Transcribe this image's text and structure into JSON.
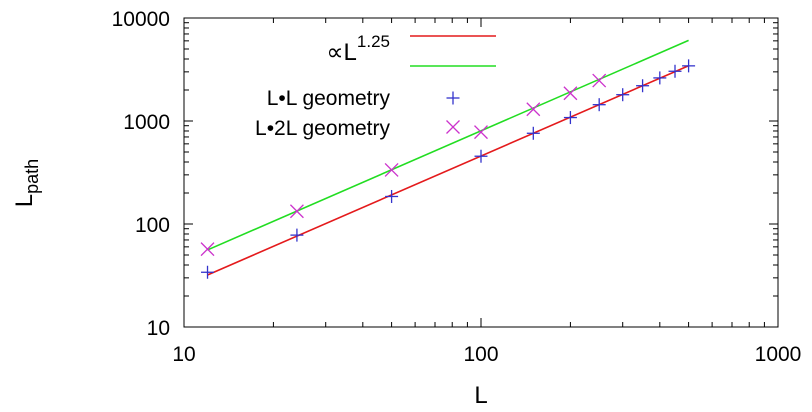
{
  "chart_data": {
    "type": "scatter",
    "title": "",
    "xlabel": "L",
    "ylabel_main": "L",
    "ylabel_sub": "path",
    "xscale": "log",
    "yscale": "log",
    "xlim": [
      10,
      1000
    ],
    "ylim": [
      10,
      10000
    ],
    "x_ticks": [
      10,
      100,
      1000
    ],
    "x_tick_labels": [
      "10",
      "100",
      "1000"
    ],
    "y_ticks": [
      10,
      100,
      1000,
      10000
    ],
    "y_tick_labels": [
      "10",
      "100",
      "1000",
      "10000"
    ],
    "grid": false,
    "legend_position": "top-center",
    "fits": [
      {
        "legend_prefix": "∝L",
        "legend_exponent": "1.25",
        "exponent": 1.25,
        "color": "#e41a1c",
        "x": [
          12,
          500
        ],
        "y": [
          32,
          3440
        ]
      },
      {
        "legend_prefix": "",
        "legend_exponent": "",
        "exponent": 1.25,
        "color": "#22dd22",
        "x": [
          12,
          500
        ],
        "y": [
          56,
          6060
        ]
      }
    ],
    "series": [
      {
        "name": "L•L geometry",
        "marker": "plus",
        "color": "#3333cc",
        "x": [
          12,
          24,
          50,
          100,
          150,
          200,
          250,
          300,
          350,
          400,
          450,
          500
        ],
        "y": [
          34,
          78,
          185,
          455,
          760,
          1080,
          1440,
          1800,
          2200,
          2620,
          3040,
          3430
        ]
      },
      {
        "name": "L•2L geometry",
        "marker": "cross",
        "color": "#cc33cc",
        "x": [
          12,
          24,
          50,
          100,
          150,
          200,
          250
        ],
        "y": [
          57,
          133,
          335,
          780,
          1300,
          1860,
          2470
        ]
      }
    ]
  }
}
